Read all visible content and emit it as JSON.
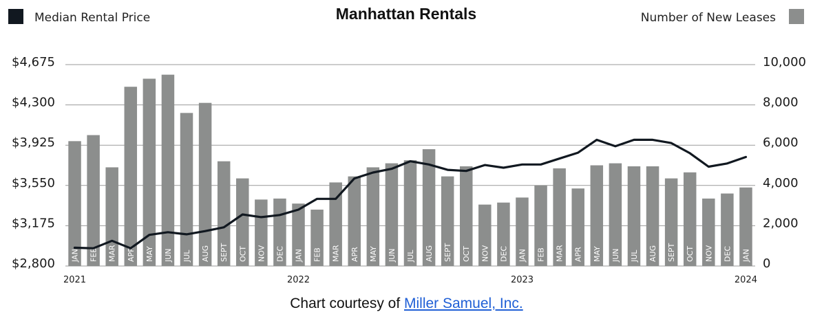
{
  "title": "Manhattan Rentals",
  "legend": {
    "left_label": "Median Rental Price",
    "right_label": "Number of New Leases"
  },
  "credit": {
    "prefix": "Chart courtesy of ",
    "link_text": "Miller Samuel, Inc."
  },
  "colors": {
    "bar": "#8c8e8d",
    "line": "#111820",
    "grid": "#9a9a9a",
    "link": "#1f5fd6"
  },
  "chart_data": {
    "type": "bar",
    "title": "Manhattan Rentals",
    "categories": [
      "JAN",
      "FEB",
      "MAR",
      "APR",
      "MAY",
      "JUN",
      "JUL",
      "AUG",
      "SEPT",
      "OCT",
      "NOV",
      "DEC",
      "JAN",
      "FEB",
      "MAR",
      "APR",
      "MAY",
      "JUN",
      "JUL",
      "AUG",
      "SEPT",
      "OCT",
      "NOV",
      "DEC",
      "JAN",
      "FEB",
      "MAR",
      "APR",
      "MAY",
      "JUN",
      "JUL",
      "AUG",
      "SEPT",
      "OCT",
      "NOV",
      "DEC",
      "JAN"
    ],
    "year_labels": [
      {
        "label": "2021",
        "index": 0
      },
      {
        "label": "2022",
        "index": 12
      },
      {
        "label": "2023",
        "index": 24
      },
      {
        "label": "2024",
        "index": 36
      }
    ],
    "series": [
      {
        "name": "Number of New Leases",
        "type": "bar",
        "axis": "right",
        "values": [
          6200,
          6500,
          4900,
          8900,
          9300,
          9500,
          7600,
          8100,
          5200,
          4350,
          3300,
          3350,
          3100,
          2800,
          4150,
          4450,
          4900,
          5100,
          5250,
          5800,
          4450,
          4950,
          3050,
          3150,
          3400,
          4000,
          4850,
          3850,
          5000,
          5100,
          4950,
          4950,
          4350,
          4650,
          3350,
          3600,
          3900
        ]
      },
      {
        "name": "Median Rental Price",
        "type": "line",
        "axis": "left",
        "values": [
          2970,
          2965,
          3035,
          2965,
          3090,
          3115,
          3095,
          3125,
          3160,
          3280,
          3255,
          3275,
          3325,
          3425,
          3425,
          3615,
          3670,
          3705,
          3775,
          3745,
          3695,
          3685,
          3740,
          3715,
          3745,
          3745,
          3800,
          3855,
          3975,
          3915,
          3975,
          3975,
          3945,
          3850,
          3725,
          3755,
          3815
        ]
      }
    ],
    "y_left": {
      "ticks": [
        "$4,675",
        "$4,300",
        "$3,925",
        "$3,550",
        "$3,175",
        "$2,800"
      ],
      "min": 2800,
      "max": 4675
    },
    "y_right": {
      "ticks": [
        "10,000",
        "8,000",
        "6,000",
        "4,000",
        "2,000",
        "0"
      ],
      "min": 0,
      "max": 10000
    },
    "grid": true,
    "legend_position": "top"
  }
}
